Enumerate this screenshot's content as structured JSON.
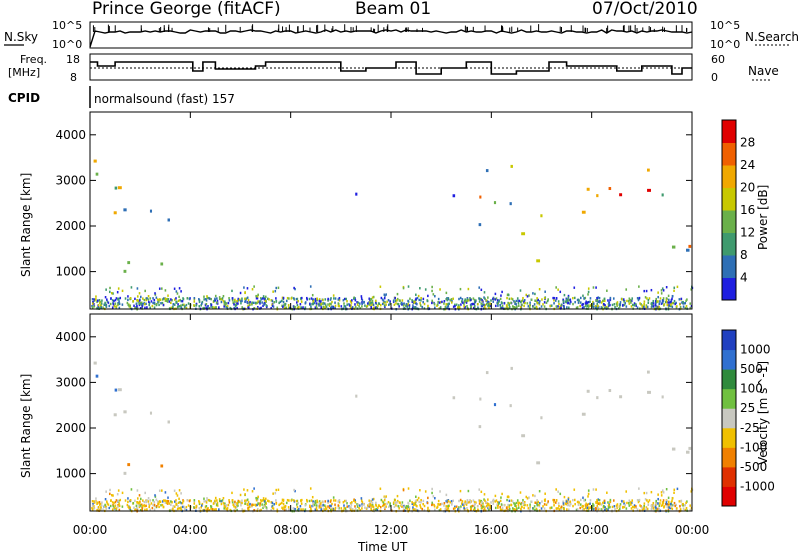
{
  "header": {
    "station": "Prince George (fitACF)",
    "beam": "Beam 01",
    "date": "07/Oct/2010"
  },
  "labels": {
    "nsky": "N.Sky",
    "nsearch": "N.Search",
    "freq_line1": "Freq.",
    "freq_line2": "[MHz]",
    "nave": "Nave",
    "cpid": "CPID",
    "program": "normalsound (fast) 157",
    "nsky_top": "10^5",
    "nsky_bottom": "10^0",
    "freq_top": "18",
    "freq_bottom": "8",
    "nave_top": "60",
    "nave_bottom": "0"
  },
  "colors": {
    "power": [
      "#1f1fe0",
      "#2e6fb5",
      "#3f9a6e",
      "#6ab04a",
      "#c8c800",
      "#f0a800",
      "#f06000",
      "#e00000"
    ],
    "velocity": [
      "#2040c0",
      "#3070d0",
      "#2f8a3c",
      "#70c040",
      "#c8c8c0",
      "#f0c000",
      "#f08000",
      "#e03000",
      "#e00000"
    ]
  },
  "chart_data": [
    {
      "type": "heatmap",
      "title": "Power",
      "ylabel": "Slant Range [km]",
      "colorbar_label": "Power [dB]",
      "colorbar_ticks": [
        "4",
        "8",
        "12",
        "16",
        "20",
        "24",
        "28"
      ],
      "ylim": [
        180,
        4500
      ],
      "yticks": [
        "1000",
        "2000",
        "3000",
        "4000"
      ],
      "regions": [
        {
          "t0": 0.0,
          "t1": 1.4,
          "r0": 1250,
          "r1": 3500,
          "level": "mid"
        },
        {
          "t0": 1.2,
          "t1": 3.6,
          "r0": 1000,
          "r1": 2500,
          "level": "low"
        },
        {
          "t0": 5.8,
          "t1": 6.6,
          "r0": 2600,
          "r1": 2900,
          "level": "low"
        },
        {
          "t0": 9.4,
          "t1": 11.2,
          "r0": 2600,
          "r1": 3100,
          "level": "low"
        },
        {
          "t0": 14.0,
          "t1": 14.8,
          "r0": 2300,
          "r1": 2900,
          "level": "low"
        },
        {
          "t0": 15.3,
          "t1": 17.4,
          "r0": 1700,
          "r1": 3700,
          "level": "mid"
        },
        {
          "t0": 17.6,
          "t1": 18.6,
          "r0": 1200,
          "r1": 2300,
          "level": "high"
        },
        {
          "t0": 18.7,
          "t1": 20.4,
          "r0": 2300,
          "r1": 3400,
          "level": "high"
        },
        {
          "t0": 20.4,
          "t1": 22.6,
          "r0": 2200,
          "r1": 3300,
          "level": "high"
        },
        {
          "t0": 22.6,
          "t1": 24.0,
          "r0": 1200,
          "r1": 3000,
          "level": "mid"
        }
      ]
    },
    {
      "type": "heatmap",
      "title": "Velocity",
      "ylabel": "Slant Range [km]",
      "colorbar_label": "Velocity [m s^-1]",
      "colorbar_ticks": [
        "1000",
        "500",
        "100",
        "25",
        "-25",
        "-100",
        "-500",
        "-1000"
      ],
      "ylim": [
        180,
        4500
      ],
      "yticks": [
        "1000",
        "2000",
        "3000",
        "4000"
      ],
      "xlabel": "Time UT",
      "xticks": [
        "00:00",
        "04:00",
        "08:00",
        "12:00",
        "16:00",
        "20:00",
        "00:00"
      ]
    }
  ]
}
